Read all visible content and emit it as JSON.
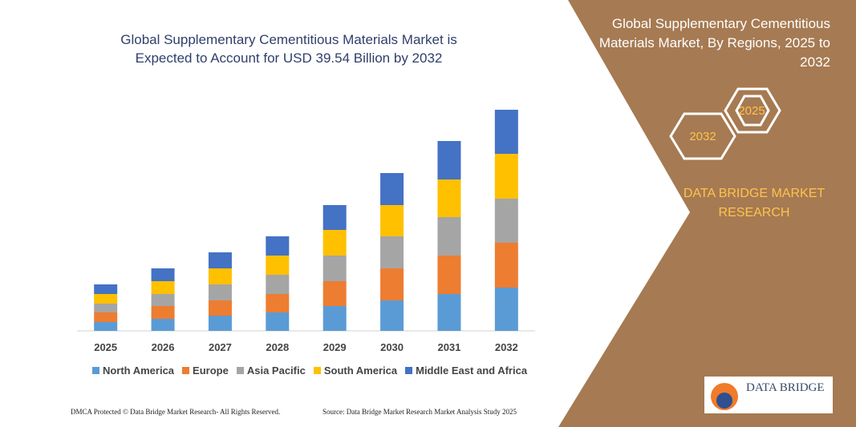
{
  "chart_data": {
    "type": "stacked-bar",
    "title": "Global Supplementary Cementitious Materials Market is Expected to Account for USD 39.54 Billion by 2032",
    "categories": [
      "2025",
      "2026",
      "2027",
      "2028",
      "2029",
      "2030",
      "2031",
      "2032"
    ],
    "series": [
      {
        "name": "North America",
        "color": "#5b9bd5",
        "values": [
          11,
          15,
          19,
          23,
          31,
          38,
          46,
          54
        ]
      },
      {
        "name": "Europe",
        "color": "#ed7d31",
        "values": [
          12,
          16,
          19,
          23,
          31,
          40,
          48,
          56
        ]
      },
      {
        "name": "Asia Pacific",
        "color": "#a5a5a5",
        "values": [
          11,
          15,
          20,
          24,
          32,
          40,
          48,
          55
        ]
      },
      {
        "name": "South America",
        "color": "#ffc000",
        "values": [
          12,
          16,
          20,
          24,
          32,
          39,
          47,
          56
        ]
      },
      {
        "name": "Middle East and Africa",
        "color": "#4472c4",
        "values": [
          12,
          16,
          20,
          24,
          31,
          40,
          48,
          55
        ]
      }
    ],
    "ylim": [
      0,
      300
    ],
    "legend": "bottom"
  },
  "panel": {
    "title": "Global Supplementary Cementitious Materials Market, By Regions, 2025 to 2032",
    "hexagons": [
      "2025",
      "2032"
    ],
    "brand": "DATA BRIDGE MARKET RESEARCH"
  },
  "logo": "DATA BRIDGE",
  "footer": {
    "left": "DMCA Protected © Data Bridge Market Research- All Rights Reserved.",
    "right": "Source: Data Bridge Market Research Market Analysis Study 2025"
  }
}
